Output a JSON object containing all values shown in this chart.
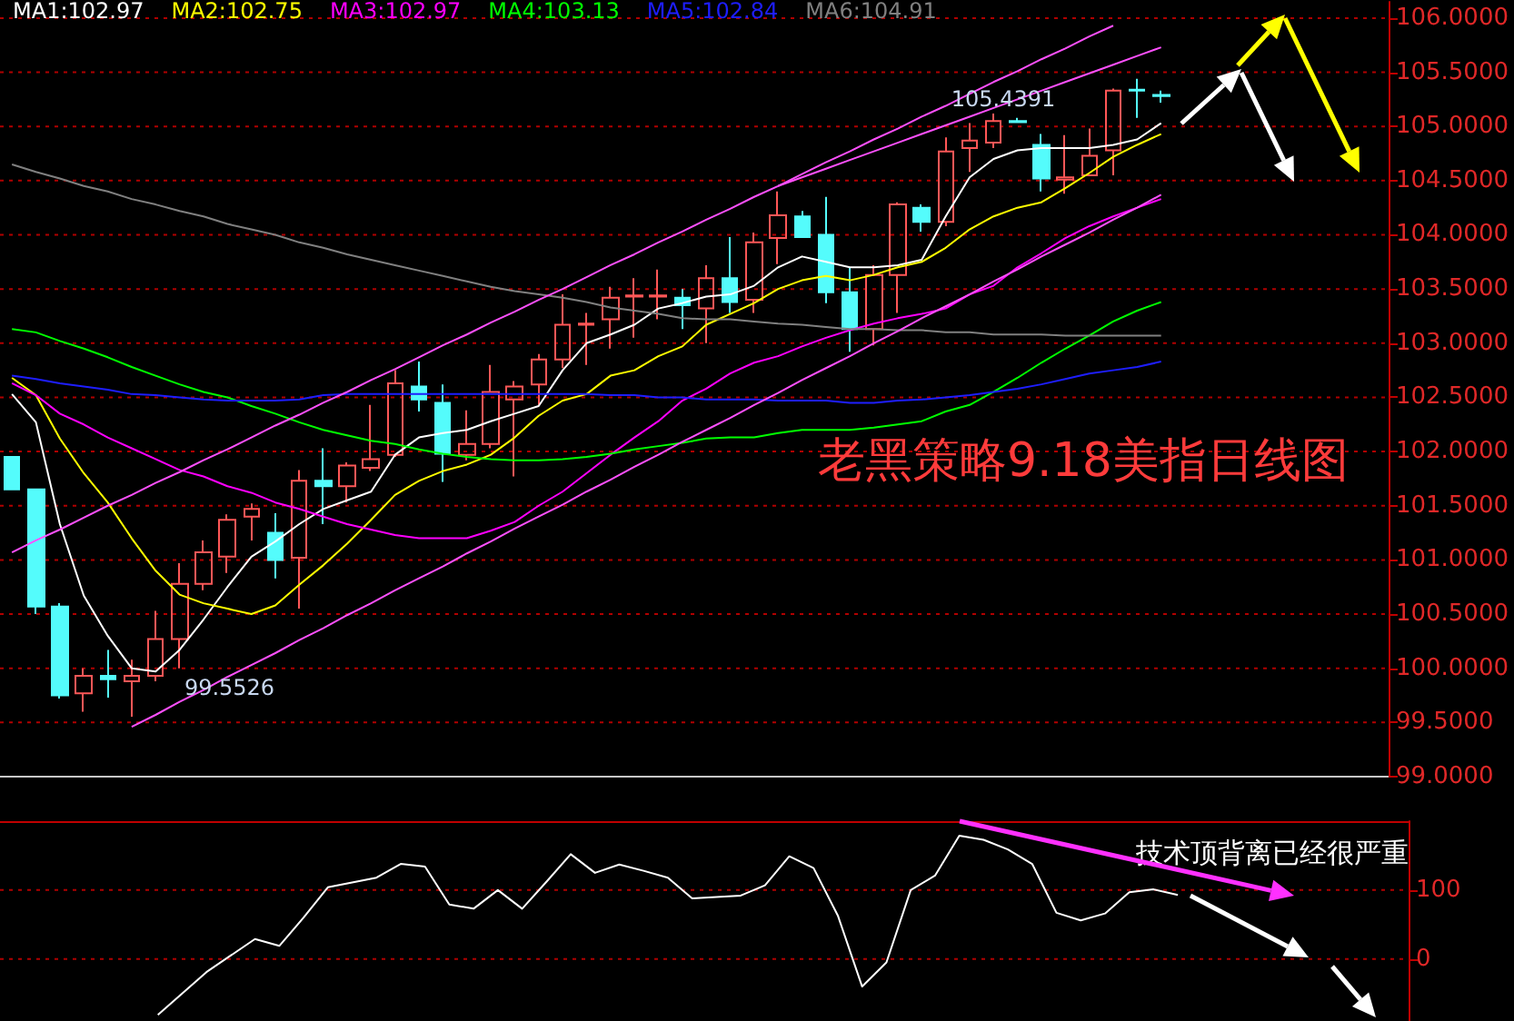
{
  "chart_data": [
    {
      "type": "candlestick",
      "title": "老黑策略9.18美指日线图",
      "categories": [
        null,
        null,
        null,
        null,
        null,
        null,
        null,
        null,
        null,
        null,
        null,
        null,
        null,
        null,
        null,
        null,
        null,
        null,
        null,
        null,
        null,
        null,
        null,
        null,
        null,
        null,
        null,
        null,
        null,
        null,
        null,
        null,
        null,
        null,
        null,
        null,
        null,
        null,
        null,
        null,
        null,
        null,
        null,
        null,
        null,
        null,
        null,
        null,
        null
      ],
      "ohlc": [
        [
          101.95,
          101.95,
          101.65,
          101.65
        ],
        [
          101.65,
          101.65,
          100.5,
          100.57
        ],
        [
          100.57,
          100.6,
          99.72,
          99.75
        ],
        [
          99.77,
          100.0,
          99.6,
          99.93
        ],
        [
          99.93,
          100.17,
          99.73,
          99.9
        ],
        [
          99.88,
          100.08,
          99.5526,
          99.93
        ],
        [
          99.93,
          100.53,
          99.88,
          100.27
        ],
        [
          100.27,
          100.97,
          100.0,
          100.78
        ],
        [
          100.78,
          101.18,
          100.72,
          101.07
        ],
        [
          101.03,
          101.42,
          100.88,
          101.37
        ],
        [
          101.4,
          101.52,
          101.18,
          101.47
        ],
        [
          101.25,
          101.43,
          100.83,
          101.0
        ],
        [
          101.02,
          101.83,
          100.55,
          101.73
        ],
        [
          101.73,
          102.03,
          101.33,
          101.68
        ],
        [
          101.68,
          101.9,
          101.53,
          101.87
        ],
        [
          101.85,
          102.43,
          101.82,
          101.93
        ],
        [
          101.97,
          102.75,
          101.95,
          102.63
        ],
        [
          102.6,
          102.83,
          102.37,
          102.48
        ],
        [
          102.45,
          102.62,
          101.72,
          101.98
        ],
        [
          101.97,
          102.38,
          101.92,
          102.07
        ],
        [
          102.07,
          102.8,
          102.03,
          102.55
        ],
        [
          102.48,
          102.65,
          101.77,
          102.6
        ],
        [
          102.62,
          102.9,
          102.43,
          102.85
        ],
        [
          102.85,
          103.45,
          102.77,
          103.17
        ],
        [
          103.17,
          103.28,
          102.8,
          103.18
        ],
        [
          103.22,
          103.52,
          102.95,
          103.42
        ],
        [
          103.43,
          103.6,
          103.05,
          103.44
        ],
        [
          103.43,
          103.68,
          103.22,
          103.44
        ],
        [
          103.42,
          103.5,
          103.13,
          103.35
        ],
        [
          103.32,
          103.72,
          103.0,
          103.6
        ],
        [
          103.6,
          103.98,
          103.28,
          103.38
        ],
        [
          103.4,
          104.02,
          103.28,
          103.93
        ],
        [
          103.97,
          104.4,
          103.73,
          104.18
        ],
        [
          104.17,
          104.22,
          103.98,
          103.98
        ],
        [
          104.0,
          104.35,
          103.37,
          103.47
        ],
        [
          103.47,
          103.7,
          102.92,
          103.13
        ],
        [
          103.13,
          103.72,
          102.98,
          103.63
        ],
        [
          103.63,
          104.3,
          103.28,
          104.28
        ],
        [
          104.25,
          104.28,
          104.03,
          104.12
        ],
        [
          104.12,
          104.9,
          104.08,
          104.77
        ],
        [
          104.8,
          105.03,
          104.58,
          104.87
        ],
        [
          104.85,
          105.12,
          104.8,
          105.05
        ],
        [
          105.05,
          105.08,
          105.03,
          105.04
        ],
        [
          104.83,
          104.93,
          104.4,
          104.52
        ],
        [
          104.51,
          104.92,
          104.38,
          104.53
        ],
        [
          104.55,
          104.98,
          104.55,
          104.73
        ],
        [
          104.78,
          105.35,
          104.55,
          105.33
        ],
        [
          105.34,
          105.4391,
          105.08,
          105.33
        ],
        [
          105.29,
          105.33,
          105.22,
          105.28
        ]
      ],
      "colors": [
        "#54fcfc",
        "#54fcfc",
        "#54fcfc",
        "#ff5757",
        "#54fcfc",
        "#ff5757",
        "#ff5757",
        "#ff5757",
        "#ff5757",
        "#ff5757",
        "#ff5757",
        "#54fcfc",
        "#ff5757",
        "#54fcfc",
        "#ff5757",
        "#ff5757",
        "#ff5757",
        "#54fcfc",
        "#54fcfc",
        "#ff5757",
        "#ff5757",
        "#ff5757",
        "#ff5757",
        "#ff5757",
        "#ff5757",
        "#ff5757",
        "#ff5757",
        "#ff5757",
        "#54fcfc",
        "#ff5757",
        "#54fcfc",
        "#ff5757",
        "#ff5757",
        "#54fcfc",
        "#54fcfc",
        "#54fcfc",
        "#ff5757",
        "#ff5757",
        "#54fcfc",
        "#ff5757",
        "#ff5757",
        "#ff5757",
        "#54fcfc",
        "#54fcfc",
        "#ff5757",
        "#ff5757",
        "#ff5757",
        "#54fcfc",
        "#54fcfc"
      ],
      "series": [
        {
          "type": "line",
          "name": "MA1:102.97",
          "color": "#ffffff",
          "values": [
            102.53,
            102.27,
            101.33,
            100.67,
            100.3,
            100.0,
            99.97,
            100.17,
            100.45,
            100.75,
            101.03,
            101.17,
            101.33,
            101.47,
            101.55,
            101.63,
            101.97,
            102.13,
            102.17,
            102.2,
            102.28,
            102.35,
            102.42,
            102.75,
            103.0,
            103.08,
            103.17,
            103.32,
            103.37,
            103.43,
            103.45,
            103.53,
            103.7,
            103.8,
            103.75,
            103.7,
            103.7,
            103.72,
            103.77,
            104.17,
            104.53,
            104.7,
            104.78,
            104.8,
            104.8,
            104.8,
            104.83,
            104.88,
            105.03
          ]
        },
        {
          "type": "line",
          "name": "MA2:102.75",
          "color": "#ffff00",
          "values": [
            102.68,
            102.52,
            102.12,
            101.8,
            101.53,
            101.2,
            100.9,
            100.68,
            100.6,
            100.55,
            100.5,
            100.58,
            100.77,
            100.95,
            101.15,
            101.37,
            101.6,
            101.73,
            101.82,
            101.88,
            101.97,
            102.13,
            102.33,
            102.47,
            102.53,
            102.7,
            102.75,
            102.88,
            102.97,
            103.17,
            103.27,
            103.37,
            103.5,
            103.58,
            103.62,
            103.58,
            103.63,
            103.7,
            103.75,
            103.88,
            104.05,
            104.17,
            104.25,
            104.3,
            104.43,
            104.57,
            104.72,
            104.83,
            104.93
          ]
        },
        {
          "type": "line",
          "name": "MA3:102.97",
          "color": "#ff00ff",
          "values": [
            102.63,
            102.52,
            102.35,
            102.25,
            102.13,
            102.03,
            101.93,
            101.83,
            101.77,
            101.68,
            101.62,
            101.53,
            101.47,
            101.4,
            101.33,
            101.28,
            101.23,
            101.2,
            101.2,
            101.2,
            101.27,
            101.35,
            101.5,
            101.63,
            101.8,
            101.97,
            102.13,
            102.28,
            102.47,
            102.58,
            102.72,
            102.82,
            102.88,
            102.97,
            103.05,
            103.12,
            103.18,
            103.23,
            103.27,
            103.32,
            103.45,
            103.53,
            103.7,
            103.83,
            103.97,
            104.08,
            104.17,
            104.25,
            104.33
          ]
        },
        {
          "type": "line",
          "name": "MA4:103.13",
          "color": "#00ff00",
          "values": [
            103.13,
            103.1,
            103.02,
            102.95,
            102.87,
            102.78,
            102.7,
            102.62,
            102.55,
            102.5,
            102.42,
            102.35,
            102.27,
            102.2,
            102.15,
            102.1,
            102.07,
            102.02,
            101.98,
            101.95,
            101.93,
            101.92,
            101.92,
            101.93,
            101.95,
            101.98,
            102.02,
            102.05,
            102.08,
            102.12,
            102.13,
            102.13,
            102.17,
            102.2,
            102.2,
            102.2,
            102.22,
            102.25,
            102.28,
            102.37,
            102.43,
            102.55,
            102.68,
            102.82,
            102.95,
            103.07,
            103.2,
            103.3,
            103.38
          ]
        },
        {
          "type": "line",
          "name": "MA5:102.84",
          "color": "#1e1eff",
          "values": [
            102.7,
            102.67,
            102.63,
            102.6,
            102.57,
            102.53,
            102.52,
            102.5,
            102.48,
            102.47,
            102.47,
            102.47,
            102.48,
            102.52,
            102.53,
            102.53,
            102.53,
            102.53,
            102.53,
            102.53,
            102.53,
            102.53,
            102.53,
            102.53,
            102.53,
            102.52,
            102.52,
            102.5,
            102.5,
            102.48,
            102.48,
            102.48,
            102.47,
            102.47,
            102.47,
            102.45,
            102.45,
            102.47,
            102.48,
            102.5,
            102.52,
            102.55,
            102.58,
            102.62,
            102.67,
            102.72,
            102.75,
            102.78,
            102.83
          ]
        },
        {
          "type": "line",
          "name": "MA6:104.91",
          "color": "#808080",
          "values": [
            104.65,
            104.58,
            104.52,
            104.45,
            104.4,
            104.33,
            104.28,
            104.22,
            104.17,
            104.1,
            104.05,
            104.0,
            103.93,
            103.88,
            103.82,
            103.77,
            103.72,
            103.67,
            103.62,
            103.57,
            103.52,
            103.48,
            103.45,
            103.42,
            103.38,
            103.33,
            103.3,
            103.27,
            103.23,
            103.22,
            103.22,
            103.2,
            103.18,
            103.17,
            103.15,
            103.13,
            103.13,
            103.12,
            103.12,
            103.1,
            103.1,
            103.08,
            103.08,
            103.08,
            103.07,
            103.07,
            103.07,
            103.07,
            103.07
          ]
        },
        {
          "type": "line",
          "color": "#ff50ff",
          "values": [
            101.07,
            101.18,
            101.28,
            101.39,
            101.5,
            101.6,
            101.71,
            101.81,
            101.92,
            102.02,
            102.13,
            102.24,
            102.34,
            102.45,
            102.55,
            102.66,
            102.76,
            102.87,
            102.98,
            103.08,
            103.19,
            103.29,
            103.4,
            103.5,
            103.61,
            103.72,
            103.82,
            103.93,
            104.03,
            104.14,
            104.24,
            104.35,
            104.45,
            104.56,
            104.67,
            104.77,
            104.88,
            104.98,
            105.09,
            105.19,
            105.3,
            105.41,
            105.51,
            105.62,
            105.72,
            105.83,
            105.93,
            null,
            null
          ]
        },
        {
          "type": "line",
          "color": "#ff50ff",
          "values": [
            null,
            null,
            null,
            null,
            null,
            null,
            null,
            null,
            null,
            null,
            null,
            null,
            null,
            null,
            null,
            null,
            null,
            null,
            null,
            null,
            null,
            null,
            null,
            null,
            null,
            null,
            null,
            null,
            null,
            null,
            null,
            null,
            104.45,
            104.53,
            104.61,
            104.69,
            104.77,
            104.85,
            104.93,
            105.01,
            105.09,
            105.17,
            105.25,
            105.33,
            105.41,
            105.49,
            105.57,
            105.65,
            105.73
          ]
        },
        {
          "type": "line",
          "color": "#ff50ff",
          "values": [
            null,
            null,
            null,
            null,
            null,
            99.46,
            99.57,
            99.69,
            99.8,
            99.92,
            100.03,
            100.14,
            100.26,
            100.37,
            100.49,
            100.6,
            100.72,
            100.83,
            100.94,
            101.06,
            101.17,
            101.29,
            101.4,
            101.51,
            101.63,
            101.74,
            101.86,
            101.97,
            102.09,
            102.2,
            102.31,
            102.43,
            102.54,
            102.66,
            102.77,
            102.88,
            103.0,
            103.11,
            103.23,
            103.34,
            103.45,
            103.57,
            103.68,
            103.8,
            103.91,
            104.02,
            104.14,
            104.25,
            104.37
          ]
        }
      ],
      "ylim": [
        99,
        106.15
      ],
      "yticks": [
        {
          "value": 99,
          "label": "99.0000"
        },
        {
          "value": 99.5,
          "label": "99.5000"
        },
        {
          "value": 100,
          "label": "100.0000"
        },
        {
          "value": 100.5,
          "label": "100.5000"
        },
        {
          "value": 101,
          "label": "101.0000"
        },
        {
          "value": 101.5,
          "label": "101.5000"
        },
        {
          "value": 102,
          "label": "102.0000"
        },
        {
          "value": 102.5,
          "label": "102.5000"
        },
        {
          "value": 103,
          "label": "103.0000"
        },
        {
          "value": 103.5,
          "label": "103.5000"
        },
        {
          "value": 104,
          "label": "104.0000"
        },
        {
          "value": 104.5,
          "label": "104.5000"
        },
        {
          "value": 105,
          "label": "105.0000"
        },
        {
          "value": 105.5,
          "label": "105.5000"
        },
        {
          "value": 106,
          "label": "106.0000"
        }
      ],
      "annotations": [
        "99.5526",
        "105.4391"
      ],
      "grid": "y",
      "legend": "top left",
      "marker": "none",
      "tick_labels": "y"
    },
    {
      "type": "line",
      "categories": [
        null,
        null,
        null,
        null,
        null,
        null,
        null,
        null,
        null,
        null,
        null,
        null,
        null,
        null,
        null,
        null,
        null,
        null,
        null,
        null,
        null,
        null,
        null,
        null,
        null,
        null,
        null,
        null,
        null,
        null,
        null,
        null,
        null,
        null,
        null,
        null,
        null,
        null,
        null,
        null,
        null,
        null,
        null,
        null,
        null,
        null,
        null,
        null,
        null
      ],
      "series": [
        {
          "color": "#ffffff",
          "values": [
            null,
            null,
            null,
            null,
            null,
            null,
            -81,
            -50,
            -19,
            5,
            29,
            19,
            60,
            104,
            111,
            118,
            138,
            134,
            79,
            73,
            100,
            73,
            112,
            152,
            125,
            137,
            128,
            118,
            88,
            90,
            92,
            107,
            149,
            132,
            63,
            -40,
            -5,
            100,
            121,
            179,
            173,
            159,
            138,
            67,
            56,
            66,
            97,
            101,
            93
          ]
        }
      ],
      "ylim": [
        -90,
        200
      ],
      "yticks": [
        0,
        100
      ],
      "annotations": [
        "技术顶背离已经很严重"
      ],
      "grid": "y",
      "marker": "none",
      "tick_labels": "y"
    }
  ]
}
